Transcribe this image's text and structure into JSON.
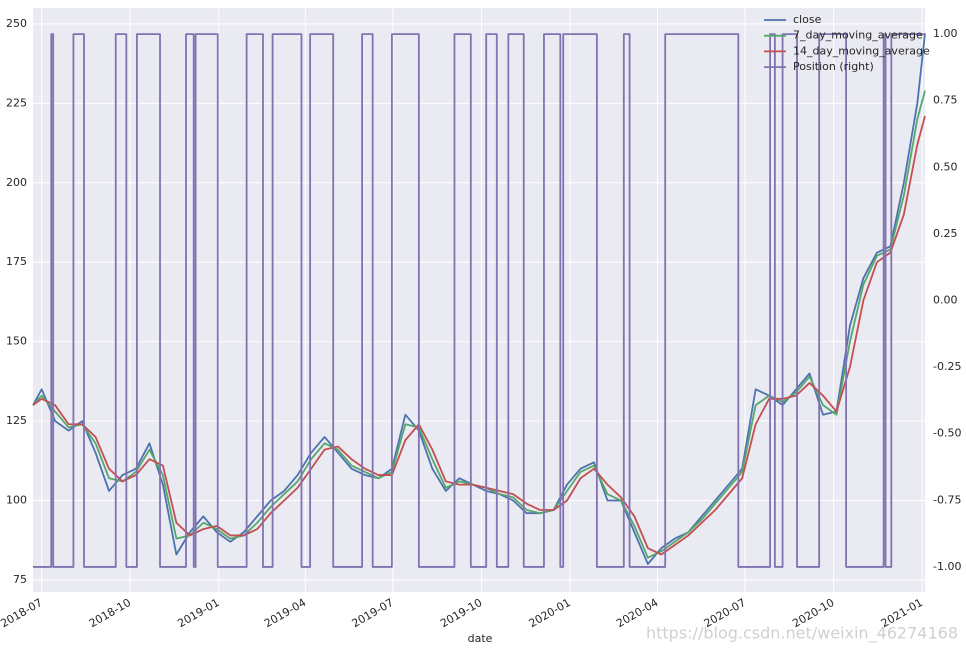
{
  "chart_data": {
    "type": "line",
    "x_label": "date",
    "watermark": "https://blog.csdn.net/weixin_46274168",
    "x": [
      "2018-06-22",
      "2018-07-01",
      "2018-07-15",
      "2018-07-29",
      "2018-08-12",
      "2018-08-26",
      "2018-09-09",
      "2018-09-23",
      "2018-10-07",
      "2018-10-21",
      "2018-11-04",
      "2018-11-18",
      "2018-12-02",
      "2018-12-16",
      "2018-12-30",
      "2019-01-13",
      "2019-01-27",
      "2019-02-10",
      "2019-02-24",
      "2019-03-10",
      "2019-03-24",
      "2019-04-07",
      "2019-04-21",
      "2019-05-05",
      "2019-05-19",
      "2019-06-02",
      "2019-06-16",
      "2019-06-30",
      "2019-07-14",
      "2019-07-28",
      "2019-08-11",
      "2019-08-25",
      "2019-09-08",
      "2019-09-22",
      "2019-10-06",
      "2019-10-20",
      "2019-11-03",
      "2019-11-17",
      "2019-12-01",
      "2019-12-15",
      "2019-12-29",
      "2020-01-12",
      "2020-01-26",
      "2020-02-09",
      "2020-02-23",
      "2020-03-08",
      "2020-03-22",
      "2020-04-05",
      "2020-04-19",
      "2020-05-03",
      "2020-05-17",
      "2020-05-31",
      "2020-06-14",
      "2020-06-28",
      "2020-07-12",
      "2020-07-26",
      "2020-08-09",
      "2020-08-23",
      "2020-09-06",
      "2020-09-20",
      "2020-10-04",
      "2020-10-18",
      "2020-11-01",
      "2020-11-15",
      "2020-11-29",
      "2020-12-13",
      "2020-12-27",
      "2021-01-04"
    ],
    "series": [
      {
        "name": "close",
        "color": "#4c72b0",
        "values": [
          130,
          135,
          125,
          122,
          125,
          115,
          103,
          108,
          110,
          118,
          105,
          83,
          90,
          95,
          90,
          87,
          90,
          95,
          100,
          103,
          108,
          115,
          120,
          115,
          110,
          108,
          107,
          110,
          127,
          122,
          110,
          103,
          107,
          105,
          103,
          102,
          100,
          96,
          96,
          97,
          105,
          110,
          112,
          100,
          100,
          90,
          80,
          85,
          88,
          90,
          95,
          100,
          105,
          110,
          135,
          133,
          130,
          135,
          140,
          127,
          128,
          155,
          170,
          178,
          180,
          200,
          225,
          247
        ]
      },
      {
        "name": "7_day_moving_average",
        "color": "#55a868",
        "values": [
          130,
          133,
          128,
          123,
          124,
          118,
          107,
          106,
          109,
          116,
          108,
          88,
          89,
          93,
          91,
          88,
          89,
          93,
          98,
          102,
          106,
          113,
          118,
          116,
          111,
          109,
          107,
          109,
          124,
          123,
          113,
          104,
          106,
          105,
          104,
          102,
          101,
          97,
          96,
          97,
          103,
          109,
          111,
          102,
          100,
          92,
          82,
          84,
          87,
          90,
          94,
          99,
          104,
          109,
          130,
          133,
          131,
          134,
          139,
          130,
          127,
          150,
          168,
          177,
          179,
          196,
          220,
          229
        ]
      },
      {
        "name": "14_day_moving_average",
        "color": "#c44e52",
        "values": [
          130,
          132,
          130,
          124,
          124,
          120,
          110,
          106,
          108,
          113,
          111,
          93,
          89,
          91,
          92,
          89,
          89,
          91,
          96,
          100,
          104,
          110,
          116,
          117,
          113,
          110,
          108,
          108,
          119,
          124,
          116,
          106,
          105,
          105,
          104,
          103,
          102,
          99,
          97,
          97,
          100,
          107,
          110,
          105,
          101,
          95,
          85,
          83,
          86,
          89,
          93,
          97,
          102,
          107,
          124,
          132,
          132,
          133,
          137,
          133,
          128,
          142,
          163,
          175,
          178,
          190,
          212,
          221
        ]
      },
      {
        "name": "Position (right)",
        "color": "#8172b2",
        "axis": "y2",
        "step": "post",
        "x": [
          "2018-06-22",
          "2018-07-11",
          "2018-07-13",
          "2018-08-03",
          "2018-08-14",
          "2018-09-16",
          "2018-09-27",
          "2018-10-08",
          "2018-11-01",
          "2018-11-28",
          "2018-12-06",
          "2018-12-08",
          "2018-12-31",
          "2019-01-30",
          "2019-02-16",
          "2019-02-26",
          "2019-03-28",
          "2019-04-06",
          "2019-04-30",
          "2019-05-30",
          "2019-06-10",
          "2019-06-30",
          "2019-07-28",
          "2019-09-03",
          "2019-09-20",
          "2019-10-06",
          "2019-10-17",
          "2019-10-29",
          "2019-11-14",
          "2019-12-05",
          "2019-12-22",
          "2019-12-25",
          "2020-01-29",
          "2020-02-26",
          "2020-03-03",
          "2020-04-09",
          "2020-06-24",
          "2020-07-27",
          "2020-08-01",
          "2020-08-09",
          "2020-08-24",
          "2020-09-16",
          "2020-10-14",
          "2020-11-22",
          "2020-11-24",
          "2020-11-30",
          "2021-01-04"
        ],
        "values": [
          -1,
          1,
          -1,
          1,
          -1,
          1,
          -1,
          1,
          -1,
          1,
          -1,
          1,
          -1,
          1,
          -1,
          1,
          -1,
          1,
          -1,
          1,
          -1,
          1,
          -1,
          1,
          -1,
          1,
          -1,
          1,
          -1,
          1,
          -1,
          1,
          -1,
          1,
          -1,
          1,
          -1,
          1,
          -1,
          1,
          -1,
          1,
          -1,
          1,
          -1,
          1,
          1
        ]
      }
    ],
    "xlim": [
      "2018-06-22",
      "2021-01-04"
    ],
    "xticks": [
      {
        "value": "2018-07-01",
        "label": "2018-07"
      },
      {
        "value": "2018-10-01",
        "label": "2018-10"
      },
      {
        "value": "2019-01-01",
        "label": "2019-01"
      },
      {
        "value": "2019-04-01",
        "label": "2019-04"
      },
      {
        "value": "2019-07-01",
        "label": "2019-07"
      },
      {
        "value": "2019-10-01",
        "label": "2019-10"
      },
      {
        "value": "2020-01-01",
        "label": "2020-01"
      },
      {
        "value": "2020-04-01",
        "label": "2020-04"
      },
      {
        "value": "2020-07-01",
        "label": "2020-07"
      },
      {
        "value": "2020-10-01",
        "label": "2020-10"
      },
      {
        "value": "2021-01-01",
        "label": "2021-01"
      }
    ],
    "ylim": [
      71.2,
      255
    ],
    "yticks": [
      75,
      100,
      125,
      150,
      175,
      200,
      225,
      250
    ],
    "y2lim": [
      -1.094,
      1.098
    ],
    "y2ticks": [
      {
        "value": -1,
        "label": "-1.00"
      },
      {
        "value": -0.75,
        "label": "-0.75"
      },
      {
        "value": -0.5,
        "label": "-0.50"
      },
      {
        "value": -0.25,
        "label": "-0.25"
      },
      {
        "value": 0,
        "label": "0.00"
      },
      {
        "value": 0.25,
        "label": "0.25"
      },
      {
        "value": 0.5,
        "label": "0.50"
      },
      {
        "value": 0.75,
        "label": "0.75"
      },
      {
        "value": 1,
        "label": "1.00"
      }
    ],
    "grid": true,
    "legend": "upper right"
  }
}
